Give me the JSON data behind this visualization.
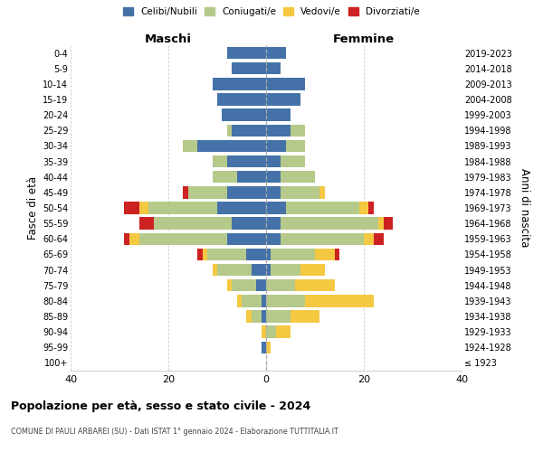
{
  "age_groups": [
    "100+",
    "95-99",
    "90-94",
    "85-89",
    "80-84",
    "75-79",
    "70-74",
    "65-69",
    "60-64",
    "55-59",
    "50-54",
    "45-49",
    "40-44",
    "35-39",
    "30-34",
    "25-29",
    "20-24",
    "15-19",
    "10-14",
    "5-9",
    "0-4"
  ],
  "birth_years": [
    "≤ 1923",
    "1924-1928",
    "1929-1933",
    "1934-1938",
    "1939-1943",
    "1944-1948",
    "1949-1953",
    "1954-1958",
    "1959-1963",
    "1964-1968",
    "1969-1973",
    "1974-1978",
    "1979-1983",
    "1984-1988",
    "1989-1993",
    "1994-1998",
    "1999-2003",
    "2004-2008",
    "2009-2013",
    "2014-2018",
    "2019-2023"
  ],
  "colors": {
    "celibe": "#4472a8",
    "coniugato": "#b5c98a",
    "vedovo": "#f5c842",
    "divorziato": "#cc2222"
  },
  "maschi": {
    "celibe": [
      0,
      1,
      0,
      1,
      1,
      2,
      3,
      4,
      8,
      7,
      10,
      8,
      6,
      8,
      14,
      7,
      9,
      10,
      11,
      7,
      8
    ],
    "coniugato": [
      0,
      0,
      0,
      2,
      4,
      5,
      7,
      8,
      18,
      16,
      14,
      8,
      5,
      3,
      3,
      1,
      0,
      0,
      0,
      0,
      0
    ],
    "vedovo": [
      0,
      0,
      1,
      1,
      1,
      1,
      1,
      1,
      2,
      0,
      2,
      0,
      0,
      0,
      0,
      0,
      0,
      0,
      0,
      0,
      0
    ],
    "divorziato": [
      0,
      0,
      0,
      0,
      0,
      0,
      0,
      1,
      1,
      3,
      3,
      1,
      0,
      0,
      0,
      0,
      0,
      0,
      0,
      0,
      0
    ]
  },
  "femmine": {
    "nubile": [
      0,
      0,
      0,
      0,
      0,
      0,
      1,
      1,
      3,
      3,
      4,
      3,
      3,
      3,
      4,
      5,
      5,
      7,
      8,
      3,
      4
    ],
    "coniugata": [
      0,
      0,
      2,
      5,
      8,
      6,
      6,
      9,
      17,
      20,
      15,
      8,
      7,
      5,
      4,
      3,
      0,
      0,
      0,
      0,
      0
    ],
    "vedova": [
      0,
      1,
      3,
      6,
      14,
      8,
      5,
      4,
      2,
      1,
      2,
      1,
      0,
      0,
      0,
      0,
      0,
      0,
      0,
      0,
      0
    ],
    "divorziata": [
      0,
      0,
      0,
      0,
      0,
      0,
      0,
      1,
      2,
      2,
      1,
      0,
      0,
      0,
      0,
      0,
      0,
      0,
      0,
      0,
      0
    ]
  },
  "xlim": 40,
  "title": "Popolazione per età, sesso e stato civile - 2024",
  "subtitle": "COMUNE DI PAULI ARBAREI (SU) - Dati ISTAT 1° gennaio 2024 - Elaborazione TUTTITALIA.IT",
  "ylabel_left": "Fasce di età",
  "ylabel_right": "Anni di nascita",
  "xlabel_maschi": "Maschi",
  "xlabel_femmine": "Femmine",
  "legend_labels": [
    "Celibi/Nubili",
    "Coniugati/e",
    "Vedovi/e",
    "Divorziati/e"
  ],
  "background_color": "#ffffff"
}
